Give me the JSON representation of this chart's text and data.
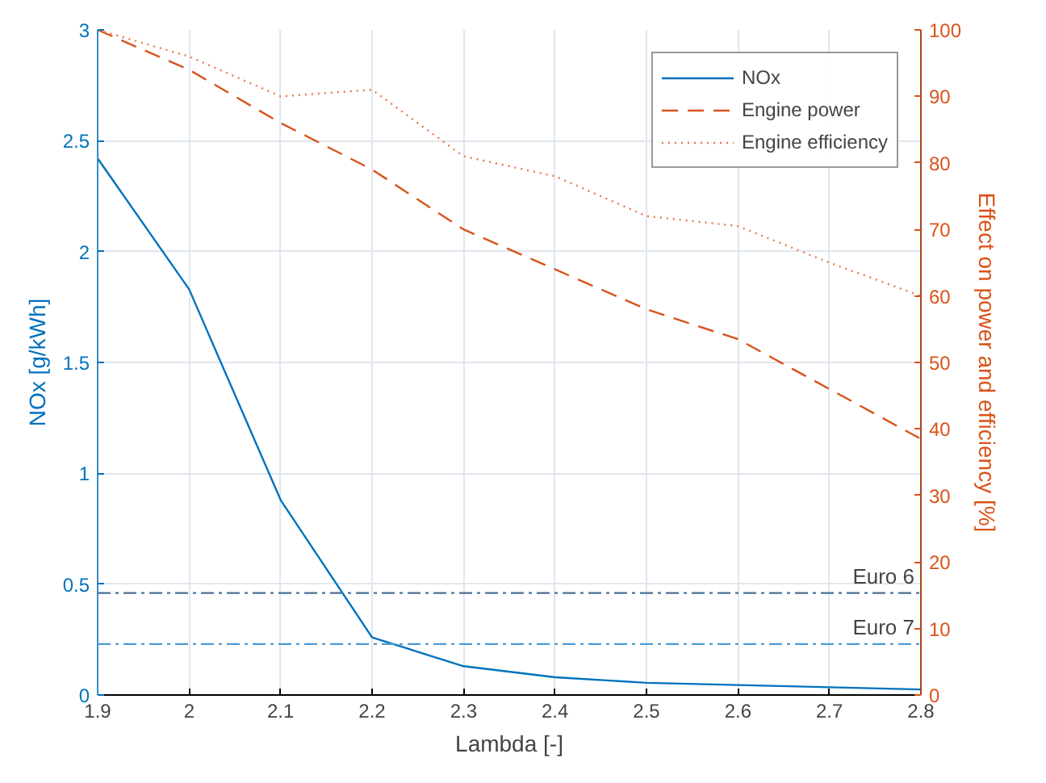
{
  "chart_data": {
    "type": "line",
    "xlabel": "Lambda [-]",
    "ylabel": "NOx [g/kWh]",
    "y2label": "Effect on power and efficiency [%]",
    "x": [
      1.9,
      2.0,
      2.1,
      2.2,
      2.3,
      2.4,
      2.5,
      2.6,
      2.7,
      2.8
    ],
    "series": [
      {
        "name": "NOx",
        "color": "#0072bd",
        "line_style": "solid",
        "values": [
          2.42,
          1.83,
          0.88,
          0.26,
          0.13,
          0.08,
          0.055,
          0.045,
          0.035,
          0.025
        ]
      },
      {
        "name": "Engine power",
        "color": "#d95319",
        "line_style": "dashed",
        "axis": "y2",
        "values": [
          100,
          94,
          86,
          79,
          70,
          64,
          58,
          53.5,
          46,
          38.5
        ]
      },
      {
        "name": "Engine efficiency",
        "color": "#e8784a",
        "line_style": "dotted",
        "axis": "y2",
        "values": [
          100,
          96,
          90,
          91,
          81,
          78,
          72,
          70.5,
          65,
          60
        ]
      }
    ],
    "xlim": [
      1.9,
      2.8
    ],
    "xticks": [
      1.9,
      2,
      2.1,
      2.2,
      2.3,
      2.4,
      2.5,
      2.6,
      2.7,
      2.8
    ],
    "ylim": [
      0,
      3
    ],
    "yticks": [
      0,
      0.5,
      1,
      1.5,
      2,
      2.5,
      3
    ],
    "y2lim": [
      0,
      100
    ],
    "y2ticks": [
      0,
      10,
      20,
      30,
      40,
      50,
      60,
      70,
      80,
      90,
      100
    ],
    "ref_lines": [
      {
        "axis": "y",
        "value": 0.46,
        "label": "Euro 6",
        "color": "#4a6f98",
        "line_style": "dashdot"
      },
      {
        "axis": "y",
        "value": 0.23,
        "label": "Euro 7",
        "color": "#4d9bd4",
        "line_style": "dashdot"
      }
    ],
    "grid": true,
    "legend": "top right",
    "marker": "none"
  }
}
